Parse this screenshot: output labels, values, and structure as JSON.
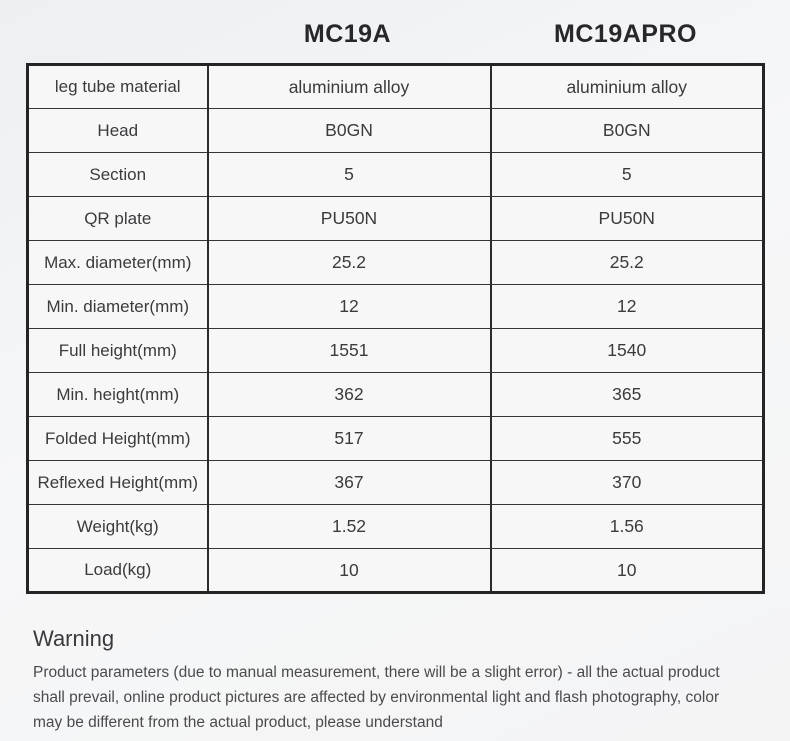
{
  "header": {
    "columns": [
      "MC19A",
      "MC19APRO"
    ]
  },
  "table": {
    "rows": [
      {
        "label": "leg tube material",
        "mc19a": "aluminium alloy",
        "mc19apro": "aluminium alloy"
      },
      {
        "label": "Head",
        "mc19a": "B0GN",
        "mc19apro": "B0GN"
      },
      {
        "label": "Section",
        "mc19a": "5",
        "mc19apro": "5"
      },
      {
        "label": "QR plate",
        "mc19a": "PU50N",
        "mc19apro": "PU50N"
      },
      {
        "label": "Max. diameter(mm)",
        "mc19a": "25.2",
        "mc19apro": "25.2"
      },
      {
        "label": "Min. diameter(mm)",
        "mc19a": "12",
        "mc19apro": "12"
      },
      {
        "label": "Full height(mm)",
        "mc19a": "1551",
        "mc19apro": "1540"
      },
      {
        "label": "Min. height(mm)",
        "mc19a": "362",
        "mc19apro": "365"
      },
      {
        "label": "Folded Height(mm)",
        "mc19a": "517",
        "mc19apro": "555"
      },
      {
        "label": "Reflexed Height(mm)",
        "mc19a": "367",
        "mc19apro": "370"
      },
      {
        "label": "Weight(kg)",
        "mc19a": "1.52",
        "mc19apro": "1.56"
      },
      {
        "label": "Load(kg)",
        "mc19a": "10",
        "mc19apro": "10"
      }
    ]
  },
  "warning": {
    "title": "Warning",
    "body": "Product parameters (due to manual measurement, there will be a slight error) - all the actual product shall prevail, online product pictures are affected by environmental light and flash photography, color may be different from the actual product, please understand"
  },
  "colors": {
    "outer_border": "#242427",
    "inner_border": "#353538",
    "cell_background": "#f7f7f8",
    "text": "#3b3b3e",
    "page_background": "#f4f4f5"
  }
}
